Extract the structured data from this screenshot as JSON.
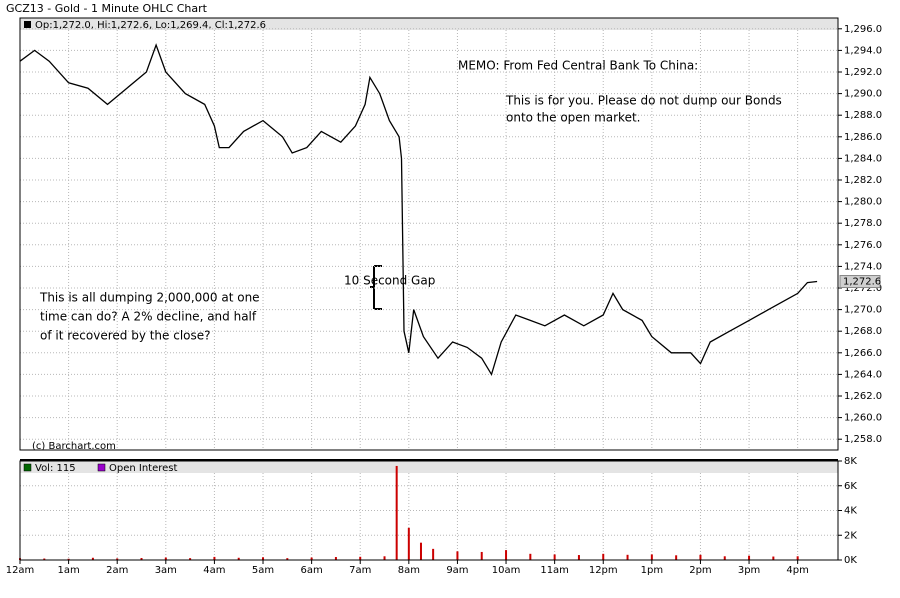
{
  "chart_data": [
    {
      "type": "line",
      "title": "GCZ13 - Gold - 1 Minute OHLC Chart",
      "legend_text": "Op:1,272.0, Hi:1,272.6, Lo:1,269.4, Cl:1,272.6",
      "credit": "(c) Barchart.com",
      "annotations": [
        "MEMO: From Fed Central Bank To China:",
        "This is for you.  Please do not dump our Bonds",
        "onto the open market.",
        "This is all dumping 2,000,000 at one",
        "time can do?  A 2% decline, and half",
        "of it recovered by the close?",
        "10 Second Gap"
      ],
      "last_price": {
        "value": 1272.6,
        "label": "1,272.6"
      },
      "color": "#000000",
      "grid": true,
      "x": [
        0,
        0.3,
        0.6,
        1.0,
        1.4,
        1.8,
        2.2,
        2.6,
        2.8,
        3.0,
        3.4,
        3.8,
        4.0,
        4.1,
        4.3,
        4.6,
        5.0,
        5.4,
        5.6,
        5.9,
        6.2,
        6.6,
        6.9,
        7.1,
        7.2,
        7.4,
        7.6,
        7.8,
        7.85,
        7.9,
        8.0,
        8.1,
        8.3,
        8.6,
        8.9,
        9.2,
        9.5,
        9.7,
        9.9,
        10.2,
        10.5,
        10.8,
        11.2,
        11.6,
        12.0,
        12.2,
        12.4,
        12.8,
        13.0,
        13.4,
        13.8,
        14.0,
        14.2,
        14.6,
        15.0,
        15.4,
        15.8,
        16.0,
        16.2,
        16.4
      ],
      "values": [
        1293,
        1294,
        1293,
        1291,
        1290.5,
        1289,
        1290.5,
        1292,
        1294.5,
        1292,
        1290,
        1289,
        1287,
        1285,
        1285,
        1286.5,
        1287.5,
        1286,
        1284.5,
        1285,
        1286.5,
        1285.5,
        1287,
        1289,
        1291.5,
        1290,
        1287.5,
        1286,
        1284,
        1268,
        1266,
        1270,
        1267.5,
        1265.5,
        1267,
        1266.5,
        1265.5,
        1264,
        1267,
        1269.5,
        1269,
        1268.5,
        1269.5,
        1268.5,
        1269.5,
        1271.5,
        1270,
        1269,
        1267.5,
        1266,
        1266,
        1265,
        1267,
        1268,
        1269,
        1270,
        1271,
        1271.5,
        1272.5,
        1272.6
      ],
      "xlim": [
        0,
        16.83
      ],
      "ylim": [
        1257,
        1297
      ],
      "yticks": [
        {
          "value": 1258,
          "label": "1,258.0"
        },
        {
          "value": 1260,
          "label": "1,260.0"
        },
        {
          "value": 1262,
          "label": "1,262.0"
        },
        {
          "value": 1264,
          "label": "1,264.0"
        },
        {
          "value": 1266,
          "label": "1,266.0"
        },
        {
          "value": 1268,
          "label": "1,268.0"
        },
        {
          "value": 1270,
          "label": "1,270.0"
        },
        {
          "value": 1272,
          "label": "1,272.0"
        },
        {
          "value": 1274,
          "label": "1,274.0"
        },
        {
          "value": 1276,
          "label": "1,276.0"
        },
        {
          "value": 1278,
          "label": "1,278.0"
        },
        {
          "value": 1280,
          "label": "1,280.0"
        },
        {
          "value": 1282,
          "label": "1,282.0"
        },
        {
          "value": 1284,
          "label": "1,284.0"
        },
        {
          "value": 1286,
          "label": "1,286.0"
        },
        {
          "value": 1288,
          "label": "1,288.0"
        },
        {
          "value": 1290,
          "label": "1,290.0"
        },
        {
          "value": 1292,
          "label": "1,292.0"
        },
        {
          "value": 1294,
          "label": "1,294.0"
        },
        {
          "value": 1296,
          "label": "1,296.0"
        }
      ]
    },
    {
      "type": "bar",
      "legend": [
        {
          "label": "Vol: 115",
          "color": "#006600"
        },
        {
          "label": "Open Interest",
          "color": "#9900cc"
        }
      ],
      "color": "#cc0000",
      "grid": true,
      "x": [
        0,
        0.5,
        1,
        1.5,
        2,
        2.5,
        3,
        3.5,
        4,
        4.5,
        5,
        5.5,
        6,
        6.5,
        7,
        7.5,
        7.75,
        8,
        8.25,
        8.5,
        9,
        9.5,
        10,
        10.5,
        11,
        11.5,
        12,
        12.5,
        13,
        13.5,
        14,
        14.5,
        15,
        15.5,
        16
      ],
      "values": [
        150,
        120,
        100,
        180,
        130,
        160,
        200,
        150,
        250,
        180,
        220,
        150,
        200,
        240,
        260,
        300,
        7600,
        2600,
        1400,
        900,
        700,
        650,
        800,
        500,
        450,
        400,
        500,
        420,
        450,
        380,
        420,
        300,
        350,
        280,
        300
      ],
      "xlim": [
        0,
        16.83
      ],
      "ylim": [
        0,
        8000
      ],
      "yticks": [
        {
          "value": 0,
          "label": "0K"
        },
        {
          "value": 2000,
          "label": "2K"
        },
        {
          "value": 4000,
          "label": "4K"
        },
        {
          "value": 6000,
          "label": "6K"
        },
        {
          "value": 8000,
          "label": "8K"
        }
      ],
      "xticks": [
        {
          "value": 0,
          "label": "12am"
        },
        {
          "value": 1,
          "label": "1am"
        },
        {
          "value": 2,
          "label": "2am"
        },
        {
          "value": 3,
          "label": "3am"
        },
        {
          "value": 4,
          "label": "4am"
        },
        {
          "value": 5,
          "label": "5am"
        },
        {
          "value": 6,
          "label": "6am"
        },
        {
          "value": 7,
          "label": "7am"
        },
        {
          "value": 8,
          "label": "8am"
        },
        {
          "value": 9,
          "label": "9am"
        },
        {
          "value": 10,
          "label": "10am"
        },
        {
          "value": 11,
          "label": "11am"
        },
        {
          "value": 12,
          "label": "12pm"
        },
        {
          "value": 13,
          "label": "1pm"
        },
        {
          "value": 14,
          "label": "2pm"
        },
        {
          "value": 15,
          "label": "3pm"
        },
        {
          "value": 16,
          "label": "4pm"
        }
      ]
    }
  ]
}
